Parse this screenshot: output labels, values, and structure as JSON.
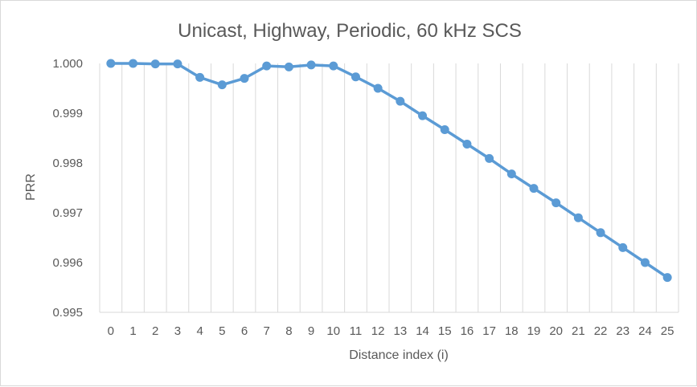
{
  "chart_data": {
    "type": "line",
    "title": "Unicast, Highway, Periodic, 60 kHz SCS",
    "xlabel": "Distance index (i)",
    "ylabel": "PRR",
    "categories": [
      "0",
      "1",
      "2",
      "3",
      "4",
      "5",
      "6",
      "7",
      "8",
      "9",
      "10",
      "11",
      "12",
      "13",
      "14",
      "15",
      "16",
      "17",
      "18",
      "19",
      "20",
      "21",
      "22",
      "23",
      "24",
      "25"
    ],
    "series": [
      {
        "values": [
          1.0,
          1.0,
          0.99999,
          0.99999,
          0.99972,
          0.99957,
          0.9997,
          0.99995,
          0.99993,
          0.99997,
          0.99995,
          0.99973,
          0.9995,
          0.99924,
          0.99895,
          0.99867,
          0.99838,
          0.99809,
          0.99778,
          0.99749,
          0.9972,
          0.9969,
          0.9966,
          0.9963,
          0.996,
          0.9957
        ]
      }
    ],
    "ylim": [
      0.995,
      1.0
    ],
    "yticks": [
      "0.995",
      "0.996",
      "0.997",
      "0.998",
      "0.999",
      "1.000"
    ],
    "grid": "vertical",
    "legend": "none",
    "line_color": "#5b9bd5",
    "grid_color": "#d9d9d9"
  }
}
